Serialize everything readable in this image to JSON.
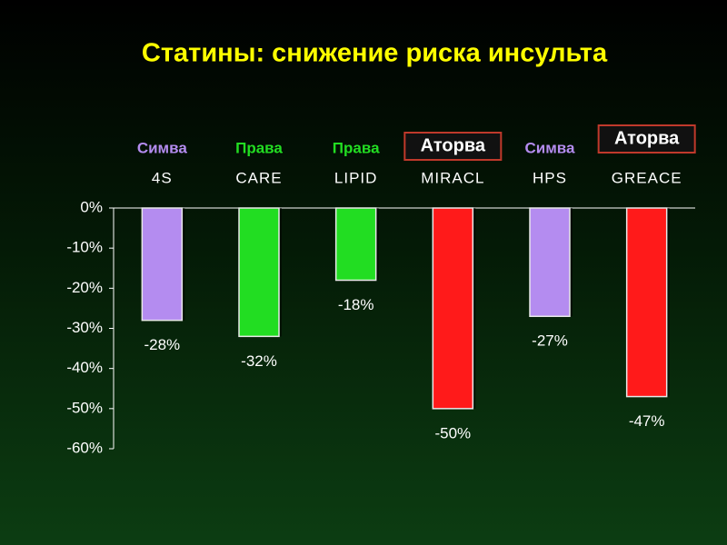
{
  "chart_data": {
    "type": "bar",
    "title": "Статины: снижение риска инсульта",
    "categories": [
      "4S",
      "CARE",
      "LIPID",
      "MIRACL",
      "HPS",
      "GREACE"
    ],
    "values": [
      -28,
      -32,
      -18,
      -50,
      -27,
      -47
    ],
    "value_labels": [
      "-28%",
      "-32%",
      "-18%",
      "-50%",
      "-27%",
      "-47%"
    ],
    "colors": [
      "#b48cf0",
      "#22dd22",
      "#22dd22",
      "#ff1a1a",
      "#b48cf0",
      "#ff1a1a"
    ],
    "annotations": [
      {
        "text": "Симва",
        "color": "#b48cf0",
        "boxed": false
      },
      {
        "text": "Права",
        "color": "#22dd22",
        "boxed": false
      },
      {
        "text": "Права",
        "color": "#22dd22",
        "boxed": false
      },
      {
        "text": "Аторва",
        "color": "#ffffff",
        "boxed": true
      },
      {
        "text": "Симва",
        "color": "#b48cf0",
        "boxed": false
      },
      {
        "text": "Аторва",
        "color": "#ffffff",
        "boxed": true
      }
    ],
    "ylim": [
      -60,
      0
    ],
    "yticks": [
      {
        "value": 0,
        "label": "0%"
      },
      {
        "value": -10,
        "label": "-10%"
      },
      {
        "value": -20,
        "label": "-20%"
      },
      {
        "value": -30,
        "label": "-30%"
      },
      {
        "value": -40,
        "label": "-40%"
      },
      {
        "value": -50,
        "label": "-50%"
      },
      {
        "value": -60,
        "label": "-60%"
      }
    ]
  }
}
